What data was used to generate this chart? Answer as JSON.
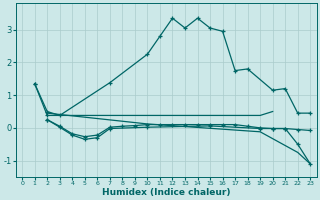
{
  "xlabel": "Humidex (Indice chaleur)",
  "bg_color": "#cce8e8",
  "grid_color": "#aacccc",
  "line_color": "#006666",
  "xlim": [
    -0.5,
    23.5
  ],
  "ylim": [
    -1.5,
    3.8
  ],
  "xticks": [
    0,
    1,
    2,
    3,
    4,
    5,
    6,
    7,
    8,
    9,
    10,
    11,
    12,
    13,
    14,
    15,
    16,
    17,
    18,
    19,
    20,
    21,
    22,
    23
  ],
  "yticks": [
    -1,
    0,
    1,
    2,
    3
  ],
  "main_line": {
    "x": [
      1,
      2,
      3,
      7,
      10,
      11,
      12,
      13,
      14,
      15,
      16,
      17,
      18,
      20,
      21,
      22,
      23
    ],
    "y": [
      1.35,
      0.5,
      0.38,
      1.38,
      2.25,
      2.8,
      3.35,
      3.05,
      3.35,
      3.05,
      2.95,
      1.75,
      1.8,
      1.15,
      1.2,
      0.45,
      0.45
    ]
  },
  "line_flat_top": {
    "x": [
      2,
      3,
      4,
      5,
      6,
      7,
      8,
      9,
      10,
      11,
      12,
      13,
      14,
      15,
      16,
      17,
      18,
      19,
      20
    ],
    "y": [
      0.38,
      0.38,
      0.38,
      0.38,
      0.38,
      0.38,
      0.38,
      0.38,
      0.38,
      0.38,
      0.38,
      0.38,
      0.38,
      0.38,
      0.38,
      0.38,
      0.38,
      0.38,
      0.5
    ]
  },
  "line_mid": {
    "x": [
      2,
      3,
      4,
      5,
      6,
      7,
      8,
      9,
      10,
      11,
      12,
      13,
      14,
      15,
      16,
      17,
      18,
      19,
      20,
      21,
      22,
      23
    ],
    "y": [
      0.25,
      0.05,
      -0.18,
      -0.27,
      -0.22,
      0.02,
      0.05,
      0.07,
      0.1,
      0.1,
      0.1,
      0.1,
      0.1,
      0.1,
      0.1,
      0.1,
      0.05,
      0.0,
      -0.02,
      -0.02,
      -0.05,
      -0.08
    ]
  },
  "line_dip": {
    "x": [
      2,
      3,
      4,
      5,
      6,
      7,
      10,
      15,
      19,
      20,
      21,
      22,
      23
    ],
    "y": [
      0.25,
      0.02,
      -0.22,
      -0.35,
      -0.3,
      -0.02,
      0.02,
      0.06,
      -0.02,
      -0.02,
      -0.02,
      -0.5,
      -1.1
    ]
  },
  "line_diagonal": {
    "x": [
      2,
      10,
      19,
      22,
      23
    ],
    "y": [
      0.45,
      0.12,
      -0.12,
      -0.75,
      -1.1
    ]
  }
}
